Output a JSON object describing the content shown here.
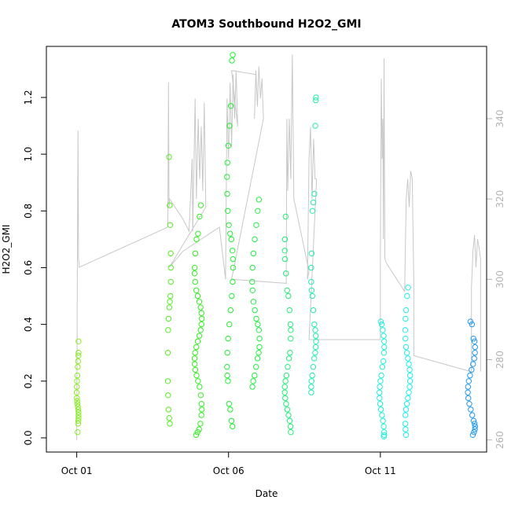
{
  "chart_data": {
    "type": "scatter",
    "title": "ATOM3 Southbound H2O2_GMI",
    "xlabel": "Date",
    "ylabel": "H2O2_GMI",
    "x_unit": "day of October",
    "xlim": [
      0.0,
      14.5
    ],
    "ylim": [
      -0.05,
      1.38
    ],
    "y2lim": [
      257,
      358
    ],
    "x_ticks": [
      {
        "value": 1,
        "label": "Oct 01"
      },
      {
        "value": 6,
        "label": "Oct 06"
      },
      {
        "value": 11,
        "label": "Oct 11"
      }
    ],
    "y_ticks": [
      {
        "value": 0.0,
        "label": "0.0"
      },
      {
        "value": 0.2,
        "label": "0.2"
      },
      {
        "value": 0.4,
        "label": "0.4"
      },
      {
        "value": 0.6,
        "label": "0.6"
      },
      {
        "value": 0.8,
        "label": "0.8"
      },
      {
        "value": 1.0,
        "label": "1.0"
      },
      {
        "value": 1.2,
        "label": "1.2"
      }
    ],
    "y2_ticks": [
      {
        "value": 260,
        "label": "260"
      },
      {
        "value": 280,
        "label": "280"
      },
      {
        "value": 300,
        "label": "300"
      },
      {
        "value": 320,
        "label": "320"
      },
      {
        "value": 340,
        "label": "340"
      }
    ],
    "grid": false,
    "colors": {
      "line": "#c8c8c8",
      "right_axis": "#b3b3b3"
    },
    "point_groups": [
      {
        "x_center": 1.03,
        "x_spread": 0.03,
        "color": "#88ee22",
        "y_values": [
          0.02,
          0.05,
          0.06,
          0.07,
          0.08,
          0.09,
          0.1,
          0.11,
          0.12,
          0.13,
          0.14,
          0.16,
          0.18,
          0.2,
          0.22,
          0.25,
          0.27,
          0.29,
          0.3,
          0.34
        ]
      },
      {
        "x_center": 4.05,
        "x_spread": 0.05,
        "color": "#55ee22",
        "y_values": [
          0.05,
          0.07,
          0.1,
          0.15,
          0.2,
          0.3,
          0.38,
          0.42,
          0.46,
          0.48,
          0.5,
          0.55,
          0.6,
          0.65,
          0.75,
          0.82,
          0.99
        ]
      },
      {
        "x_center": 5.0,
        "x_spread": 0.12,
        "color": "#33ee22",
        "y_values": [
          0.01,
          0.02,
          0.03,
          0.05,
          0.08,
          0.1,
          0.12,
          0.15,
          0.18,
          0.2,
          0.22,
          0.24,
          0.26,
          0.28,
          0.3,
          0.32,
          0.34,
          0.36,
          0.38,
          0.4,
          0.42,
          0.44,
          0.46,
          0.48,
          0.5,
          0.52,
          0.55,
          0.58,
          0.6,
          0.65,
          0.7,
          0.72,
          0.78,
          0.82
        ]
      },
      {
        "x_center": 6.05,
        "x_spread": 0.1,
        "color": "#22ee33",
        "y_values": [
          0.04,
          0.06,
          0.1,
          0.12,
          0.2,
          0.22,
          0.25,
          0.3,
          0.35,
          0.4,
          0.45,
          0.5,
          0.55,
          0.6,
          0.63,
          0.66,
          0.7,
          0.72,
          0.75,
          0.8,
          0.86,
          0.92,
          0.97,
          1.03,
          1.1,
          1.17,
          1.33,
          1.35
        ]
      },
      {
        "x_center": 6.9,
        "x_spread": 0.12,
        "color": "#22ee44",
        "y_values": [
          0.18,
          0.2,
          0.22,
          0.25,
          0.28,
          0.3,
          0.32,
          0.35,
          0.38,
          0.4,
          0.42,
          0.45,
          0.48,
          0.52,
          0.55,
          0.6,
          0.65,
          0.7,
          0.75,
          0.8,
          0.84
        ]
      },
      {
        "x_center": 7.95,
        "x_spread": 0.1,
        "color": "#22ee77",
        "y_values": [
          0.02,
          0.04,
          0.06,
          0.08,
          0.1,
          0.12,
          0.14,
          0.16,
          0.18,
          0.2,
          0.22,
          0.25,
          0.28,
          0.3,
          0.35,
          0.38,
          0.4,
          0.45,
          0.5,
          0.52,
          0.58,
          0.63,
          0.66,
          0.7,
          0.78
        ]
      },
      {
        "x_center": 8.8,
        "x_spread": 0.08,
        "color": "#22eeaa",
        "y_values": [
          0.16,
          0.18,
          0.2,
          0.22,
          0.25,
          0.28,
          0.3,
          0.32,
          0.34,
          0.36,
          0.38,
          0.4,
          0.45,
          0.5,
          0.52,
          0.55,
          0.6,
          0.65,
          0.8,
          0.83,
          0.86,
          1.1,
          1.19,
          1.2
        ]
      },
      {
        "x_center": 11.05,
        "x_spread": 0.08,
        "color": "#22eedd",
        "y_values": [
          0.005,
          0.01,
          0.02,
          0.04,
          0.06,
          0.08,
          0.1,
          0.12,
          0.14,
          0.16,
          0.18,
          0.2,
          0.22,
          0.25,
          0.27,
          0.3,
          0.32,
          0.34,
          0.36,
          0.38,
          0.4,
          0.41
        ]
      },
      {
        "x_center": 11.9,
        "x_spread": 0.08,
        "color": "#22eeee",
        "y_values": [
          0.01,
          0.03,
          0.05,
          0.08,
          0.1,
          0.12,
          0.14,
          0.16,
          0.18,
          0.2,
          0.22,
          0.24,
          0.26,
          0.28,
          0.3,
          0.32,
          0.35,
          0.38,
          0.42,
          0.45,
          0.5,
          0.53
        ]
      },
      {
        "x_center": 14.0,
        "x_spread": 0.12,
        "color": "#2299ee",
        "y_values": [
          0.01,
          0.02,
          0.03,
          0.04,
          0.05,
          0.06,
          0.08,
          0.1,
          0.12,
          0.14,
          0.16,
          0.18,
          0.2,
          0.22,
          0.24,
          0.26,
          0.28,
          0.3,
          0.32,
          0.34,
          0.35,
          0.4,
          0.41
        ]
      }
    ],
    "line_series": {
      "name": "",
      "axis": "right",
      "points": [
        [
          1.0,
          260
        ],
        [
          1.02,
          303
        ],
        [
          1.04,
          337
        ],
        [
          1.06,
          305
        ],
        [
          1.08,
          304
        ],
        [
          1.08,
          303
        ],
        [
          4.0,
          313
        ],
        [
          4.02,
          349
        ],
        [
          4.04,
          318
        ],
        [
          4.06,
          320
        ],
        [
          4.5,
          315
        ],
        [
          4.7,
          312
        ],
        [
          4.8,
          330
        ],
        [
          4.82,
          312
        ],
        [
          4.9,
          345
        ],
        [
          4.94,
          320
        ],
        [
          5.0,
          340
        ],
        [
          5.05,
          325
        ],
        [
          5.1,
          338
        ],
        [
          5.15,
          322
        ],
        [
          5.2,
          344
        ],
        [
          5.25,
          318
        ],
        [
          4.05,
          303
        ],
        [
          4.5,
          307
        ],
        [
          5.7,
          313
        ],
        [
          5.9,
          300
        ],
        [
          5.95,
          345
        ],
        [
          6.0,
          330
        ],
        [
          6.05,
          349
        ],
        [
          6.1,
          333
        ],
        [
          6.15,
          351
        ],
        [
          6.2,
          340
        ],
        [
          6.25,
          352
        ],
        [
          6.3,
          338
        ],
        [
          6.1,
          352
        ],
        [
          6.9,
          351
        ],
        [
          6.85,
          340
        ],
        [
          6.9,
          352
        ],
        [
          6.95,
          343
        ],
        [
          7.0,
          353
        ],
        [
          7.05,
          345
        ],
        [
          7.1,
          350
        ],
        [
          7.15,
          340
        ],
        [
          6.1,
          300
        ],
        [
          7.9,
          299
        ],
        [
          7.92,
          340
        ],
        [
          7.95,
          322
        ],
        [
          8.0,
          340
        ],
        [
          8.05,
          325
        ],
        [
          8.1,
          356
        ],
        [
          8.15,
          320
        ],
        [
          8.65,
          302
        ],
        [
          8.6,
          300
        ],
        [
          8.65,
          330
        ],
        [
          8.7,
          338
        ],
        [
          8.75,
          320
        ],
        [
          8.8,
          335
        ],
        [
          8.85,
          325
        ],
        [
          8.9,
          325
        ],
        [
          8.65,
          285
        ],
        [
          11.0,
          285
        ],
        [
          11.0,
          304
        ],
        [
          11.03,
          350
        ],
        [
          11.06,
          330
        ],
        [
          11.08,
          340
        ],
        [
          11.1,
          310
        ],
        [
          11.12,
          355
        ],
        [
          11.15,
          305
        ],
        [
          11.2,
          304
        ],
        [
          11.8,
          297
        ],
        [
          11.85,
          320
        ],
        [
          11.9,
          325
        ],
        [
          11.95,
          318
        ],
        [
          12.0,
          327
        ],
        [
          12.05,
          325
        ],
        [
          12.1,
          300
        ],
        [
          12.1,
          297
        ],
        [
          12.1,
          281
        ],
        [
          14.0,
          277
        ],
        [
          14.0,
          298
        ],
        [
          14.05,
          307
        ],
        [
          14.1,
          311
        ],
        [
          14.15,
          303
        ],
        [
          14.2,
          310
        ],
        [
          14.25,
          308
        ],
        [
          14.3,
          305
        ],
        [
          14.3,
          277
        ]
      ]
    }
  }
}
